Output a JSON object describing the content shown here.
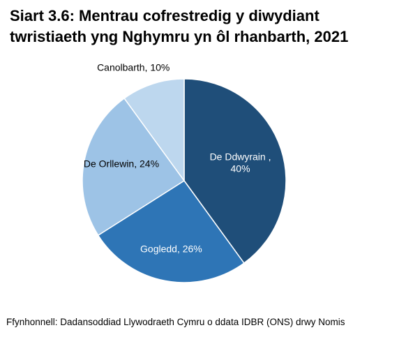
{
  "title_lines": [
    "Siart 3.6: Mentrau cofrestredig y diwydiant",
    "twristiaeth yng Nghymru yn ôl rhanbarth, 2021"
  ],
  "source": "Ffynhonnell: Dadansoddiad Llywodraeth Cymru o ddata IDBR (ONS) drwy Nomis",
  "chart_data": {
    "type": "pie",
    "title": "Siart 3.6: Mentrau cofrestredig y diwydiant twristiaeth yng Nghymru yn ôl rhanbarth, 2021",
    "slices": [
      {
        "name": "De Ddwyrain",
        "value": 40,
        "label_lines": [
          "De Ddwyrain ,",
          "40%"
        ],
        "color": "#1f4e79",
        "label_color": "#ffffff",
        "label_inside": true
      },
      {
        "name": "Gogledd",
        "value": 26,
        "label_lines": [
          "Gogledd, 26%"
        ],
        "color": "#2e75b6",
        "label_color": "#ffffff",
        "label_inside": true
      },
      {
        "name": "De Orllewin",
        "value": 24,
        "label_lines": [
          "De Orllewin, 24%"
        ],
        "color": "#9dc3e6",
        "label_color": "#000000",
        "label_inside": true
      },
      {
        "name": "Canolbarth",
        "value": 10,
        "label_lines": [
          "Canolbarth, 10%"
        ],
        "color": "#bdd7ee",
        "label_color": "#000000",
        "label_inside": false
      }
    ],
    "start_angle_deg": 0,
    "direction": "clockwise",
    "legend": "none"
  }
}
